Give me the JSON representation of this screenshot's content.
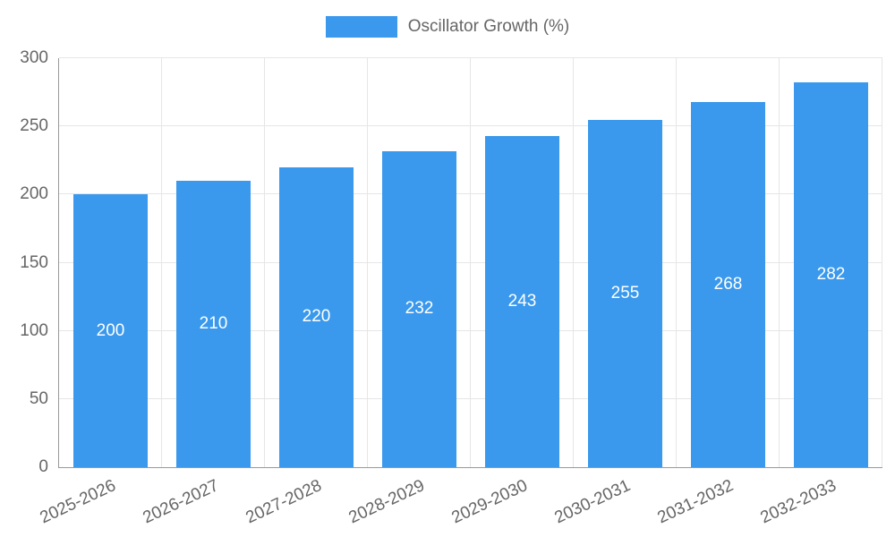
{
  "colors": {
    "bar": "#3A99EC",
    "grid": "#e6e6e6",
    "axis": "#999999",
    "text": "#666666",
    "bar_label_text": "#ffffff"
  },
  "legend": {
    "label": "Oscillator Growth (%)"
  },
  "chart_data": {
    "type": "bar",
    "title": "",
    "xlabel": "",
    "ylabel": "",
    "categories": [
      "2025-2026",
      "2026-2027",
      "2027-2028",
      "2028-2029",
      "2029-2030",
      "2030-2031",
      "2031-2032",
      "2032-2033"
    ],
    "values": [
      200,
      210,
      220,
      232,
      243,
      255,
      268,
      282
    ],
    "series_name": "Oscillator Growth (%)",
    "ylim": [
      0,
      300
    ],
    "yticks": [
      0,
      50,
      100,
      150,
      200,
      250,
      300
    ],
    "grid": "on",
    "legend_position": "top",
    "bar_color": "#3A99EC",
    "data_labels": "inside-center"
  }
}
